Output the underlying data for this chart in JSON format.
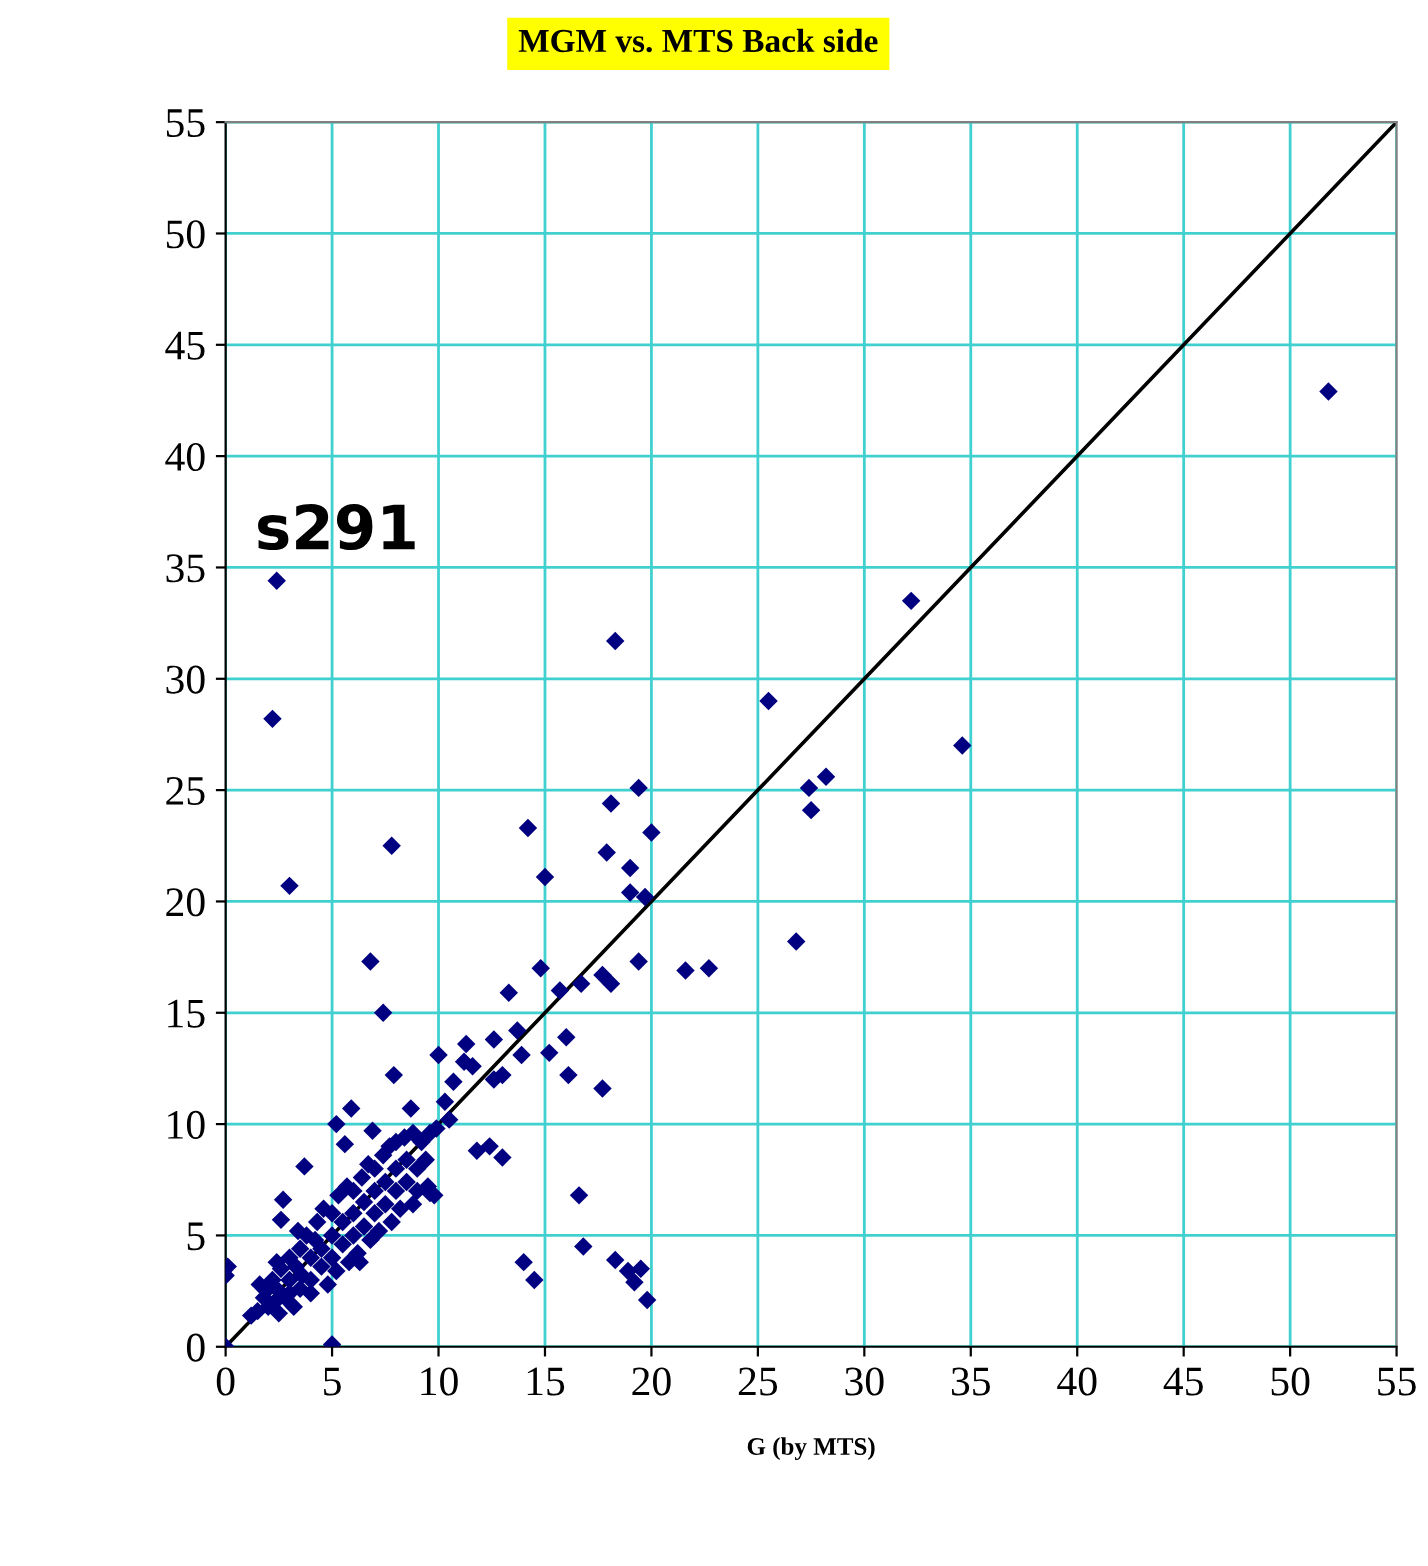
{
  "chart_data": {
    "type": "scatter",
    "title": "MGM vs. MTS Back side",
    "xlabel": "G (by MTS)",
    "annotations": [
      "s291"
    ],
    "xlim": [
      0,
      55
    ],
    "ylim": [
      0,
      55
    ],
    "xticks": [
      0,
      5,
      10,
      15,
      20,
      25,
      30,
      35,
      40,
      45,
      50,
      55
    ],
    "yticks": [
      0,
      5,
      10,
      15,
      20,
      25,
      30,
      35,
      40,
      45,
      50,
      55
    ],
    "grid": true,
    "legend": false,
    "series": [
      {
        "color": "#000080",
        "marker": "diamond",
        "x": [
          2.4,
          18.3,
          2.2,
          25.5,
          32.2,
          34.6,
          19.4,
          18.1,
          27.4,
          28.2,
          27.5,
          14.2,
          20.0,
          7.8,
          17.9,
          19.0,
          15.0,
          3.0,
          19.0,
          19.7,
          26.8,
          6.8,
          14.8,
          19.4,
          21.6,
          22.7,
          17.7,
          18.1,
          16.7,
          15.7,
          13.3,
          7.4,
          13.7,
          12.6,
          11.3,
          16.0,
          15.2,
          13.9,
          10.0,
          11.2,
          11.6,
          13.0,
          12.6,
          16.1,
          17.7,
          7.9,
          10.7,
          10.3,
          10.5,
          8.7,
          5.9,
          5.2,
          6.9,
          5.6,
          11.8,
          12.4,
          13.0,
          3.7,
          16.6,
          2.7,
          2.6,
          16.8,
          14.0,
          14.5,
          18.3,
          18.9,
          19.5,
          19.2,
          19.8,
          0.1,
          0,
          0,
          5.0,
          6.3,
          9.6,
          51.8,
          1.5,
          1.8,
          2,
          2,
          2.2,
          2.3,
          2.5,
          2.5,
          2.6,
          2.8,
          3,
          3,
          3,
          3.2,
          3.3,
          3.5,
          3.5,
          3.6,
          3.8,
          4,
          4,
          4,
          4.2,
          4.3,
          4.5,
          4.5,
          4.6,
          4.8,
          5,
          5,
          5,
          5.2,
          5.3,
          5.5,
          5.5,
          5.7,
          5.8,
          6,
          6,
          6,
          6.2,
          6.4,
          6.5,
          6.5,
          6.7,
          6.8,
          7,
          7,
          7,
          7.2,
          7.4,
          7.5,
          7.5,
          7.7,
          7.8,
          8,
          8,
          8,
          8.2,
          8.4,
          8.5,
          8.5,
          8.8,
          8.8,
          9,
          9,
          9.2,
          9.4,
          9.5,
          9.6,
          9.8,
          1.2,
          1.6,
          2.4,
          3.4,
          9.9
        ],
        "values": [
          34.4,
          31.7,
          28.2,
          29.0,
          33.5,
          27.0,
          25.1,
          24.4,
          25.1,
          25.6,
          24.1,
          23.3,
          23.1,
          22.5,
          22.2,
          21.5,
          21.1,
          20.7,
          20.4,
          20.2,
          18.2,
          17.3,
          17.0,
          17.3,
          16.9,
          17.0,
          16.7,
          16.3,
          16.3,
          16.0,
          15.9,
          15.0,
          14.2,
          13.8,
          13.6,
          13.9,
          13.2,
          13.1,
          13.1,
          12.8,
          12.6,
          12.2,
          12.0,
          12.2,
          11.6,
          12.2,
          11.9,
          11.0,
          10.2,
          10.7,
          10.7,
          10.0,
          9.7,
          9.1,
          8.8,
          9.0,
          8.5,
          8.1,
          6.8,
          6.6,
          5.7,
          4.5,
          3.8,
          3.0,
          3.9,
          3.4,
          3.5,
          2.9,
          2.1,
          3.6,
          3.2,
          0,
          0.1,
          3.8,
          6.9,
          42.9,
          1.6,
          2.2,
          1.8,
          2.6,
          3.0,
          2.0,
          1.5,
          2.5,
          3.5,
          2.2,
          3,
          4,
          2.4,
          1.8,
          3.6,
          2.6,
          4.4,
          3.2,
          5,
          4,
          3,
          2.4,
          4.8,
          5.6,
          3.6,
          4.4,
          6.2,
          2.8,
          5,
          4,
          6,
          3.4,
          6.8,
          4.6,
          5.6,
          7.2,
          3.8,
          6,
          5,
          7,
          4.2,
          7.6,
          5.4,
          6.5,
          8.2,
          4.8,
          7,
          6,
          8,
          5.2,
          8.6,
          6.4,
          7.4,
          9,
          5.6,
          8,
          7,
          9.2,
          6.2,
          9.4,
          7.4,
          8.4,
          9.6,
          6.4,
          8,
          7,
          9.2,
          8.4,
          7.2,
          9.6,
          6.8,
          1.4,
          2.8,
          3.8,
          5.2,
          9.8
        ]
      },
      {
        "type": "line",
        "color": "#000000",
        "marker": "none",
        "line_style": "solid",
        "x": [
          0,
          55
        ],
        "values": [
          0,
          55
        ]
      }
    ]
  }
}
